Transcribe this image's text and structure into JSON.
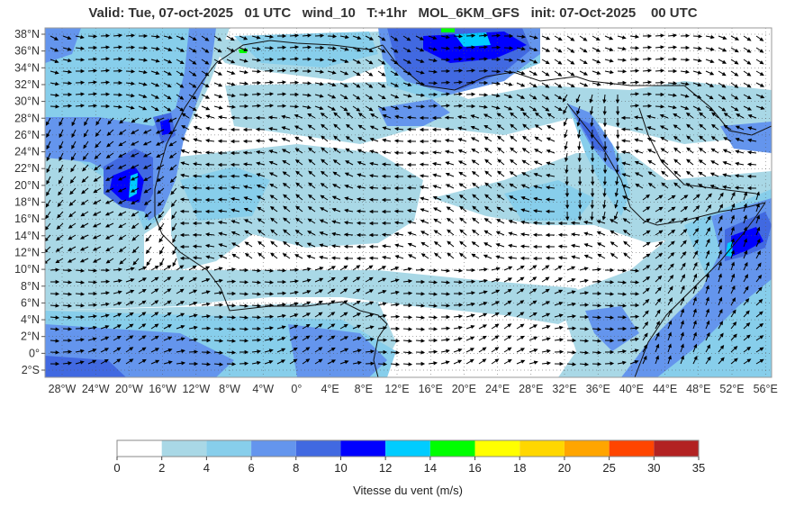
{
  "title": {
    "valid": "Valid: Tue, 07-oct-2025",
    "hour": "01 UTC",
    "field": "wind_10",
    "lead": "T:+1hr",
    "model": "MOL_6KM_GFS",
    "init": "init: 07-Oct-2025",
    "init_hour": "00 UTC"
  },
  "map": {
    "lat_labels": [
      "38°N",
      "36°N",
      "34°N",
      "32°N",
      "30°N",
      "28°N",
      "26°N",
      "24°N",
      "22°N",
      "20°N",
      "18°N",
      "16°N",
      "14°N",
      "12°N",
      "10°N",
      "8°N",
      "6°N",
      "4°N",
      "2°N",
      "0°",
      "2°S"
    ],
    "lon_labels": [
      "28°W",
      "24°W",
      "20°W",
      "16°W",
      "12°W",
      "8°W",
      "4°W",
      "0°",
      "4°E",
      "8°E",
      "12°E",
      "16°E",
      "20°E",
      "24°E",
      "28°E",
      "32°E",
      "36°E",
      "40°E",
      "44°E",
      "48°E",
      "52°E",
      "56°E"
    ]
  },
  "colorbar": {
    "title": "Vitesse du vent (m/s)",
    "ticks": [
      "0",
      "2",
      "4",
      "6",
      "8",
      "10",
      "12",
      "14",
      "16",
      "18",
      "20",
      "25",
      "30",
      "35"
    ],
    "colors": [
      "#ffffff",
      "#a9d8e6",
      "#87ceeb",
      "#6495ed",
      "#4169e1",
      "#0000ff",
      "#00ccff",
      "#00ff00",
      "#ffff00",
      "#ffd700",
      "#ffa500",
      "#ff4500",
      "#b22222"
    ]
  }
}
